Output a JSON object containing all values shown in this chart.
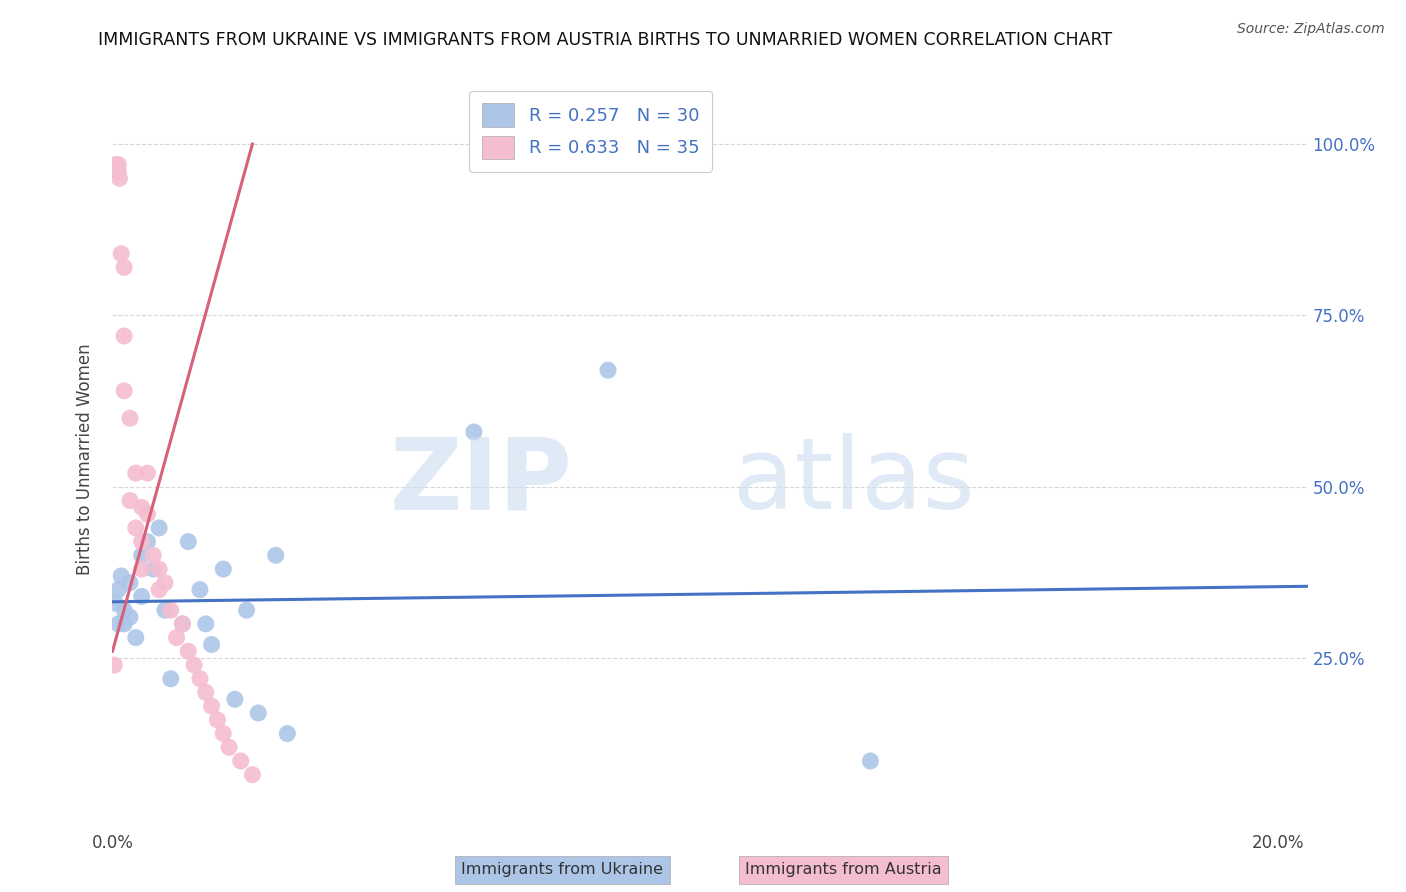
{
  "title": "IMMIGRANTS FROM UKRAINE VS IMMIGRANTS FROM AUSTRIA BIRTHS TO UNMARRIED WOMEN CORRELATION CHART",
  "source": "Source: ZipAtlas.com",
  "ylabel": "Births to Unmarried Women",
  "xlabel_ukraine": "Immigrants from Ukraine",
  "xlabel_austria": "Immigrants from Austria",
  "xlim": [
    0.0,
    0.205
  ],
  "ylim": [
    0.0,
    1.08
  ],
  "yticks": [
    0.25,
    0.5,
    0.75,
    1.0
  ],
  "ytick_labels": [
    "25.0%",
    "50.0%",
    "75.0%",
    "100.0%"
  ],
  "xtick_labels": [
    "0.0%",
    "",
    "",
    "",
    "20.0%"
  ],
  "ukraine_R": 0.257,
  "ukraine_N": 30,
  "austria_R": 0.633,
  "austria_N": 35,
  "ukraine_color": "#adc6e8",
  "austria_color": "#f5bdd0",
  "ukraine_line_color": "#4472c4",
  "austria_line_color": "#d9607a",
  "ukraine_scatter_x": [
    0.0005,
    0.001,
    0.001,
    0.0015,
    0.002,
    0.002,
    0.003,
    0.003,
    0.004,
    0.005,
    0.005,
    0.006,
    0.007,
    0.008,
    0.009,
    0.01,
    0.012,
    0.013,
    0.015,
    0.016,
    0.017,
    0.019,
    0.021,
    0.023,
    0.025,
    0.028,
    0.03,
    0.062,
    0.085,
    0.13
  ],
  "ukraine_scatter_y": [
    0.33,
    0.35,
    0.3,
    0.37,
    0.3,
    0.32,
    0.31,
    0.36,
    0.28,
    0.4,
    0.34,
    0.42,
    0.38,
    0.44,
    0.32,
    0.22,
    0.3,
    0.42,
    0.35,
    0.3,
    0.27,
    0.38,
    0.19,
    0.32,
    0.17,
    0.4,
    0.14,
    0.58,
    0.67,
    0.1
  ],
  "austria_scatter_x": [
    0.0003,
    0.0005,
    0.001,
    0.001,
    0.0012,
    0.0015,
    0.002,
    0.002,
    0.002,
    0.003,
    0.003,
    0.004,
    0.004,
    0.005,
    0.005,
    0.005,
    0.006,
    0.006,
    0.007,
    0.008,
    0.008,
    0.009,
    0.01,
    0.011,
    0.012,
    0.013,
    0.014,
    0.015,
    0.016,
    0.017,
    0.018,
    0.019,
    0.02,
    0.022,
    0.024
  ],
  "austria_scatter_y": [
    0.24,
    0.97,
    0.97,
    0.96,
    0.95,
    0.84,
    0.82,
    0.72,
    0.64,
    0.6,
    0.48,
    0.52,
    0.44,
    0.47,
    0.42,
    0.38,
    0.52,
    0.46,
    0.4,
    0.38,
    0.35,
    0.36,
    0.32,
    0.28,
    0.3,
    0.26,
    0.24,
    0.22,
    0.2,
    0.18,
    0.16,
    0.14,
    0.12,
    0.1,
    0.08
  ],
  "watermark_zip": "ZIP",
  "watermark_atlas": "atlas",
  "background_color": "#ffffff",
  "grid_color": "#d8d8d8"
}
